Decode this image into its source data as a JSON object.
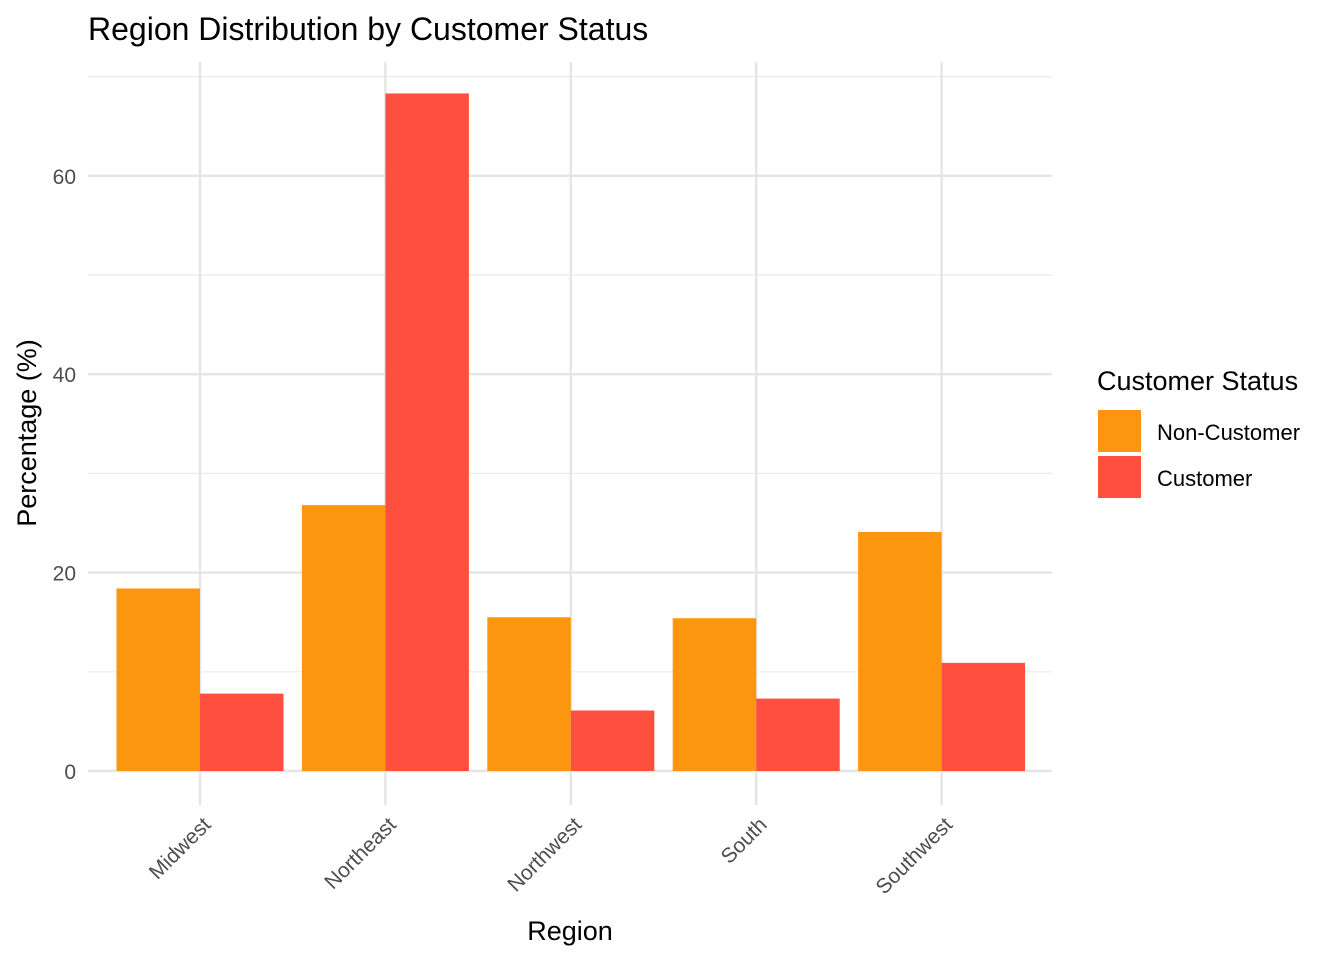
{
  "chart_data": {
    "type": "bar",
    "title": "Region Distribution by Customer Status",
    "xlabel": "Region",
    "ylabel": "Percentage (%)",
    "categories": [
      "Midwest",
      "Northeast",
      "Northwest",
      "South",
      "Southwest"
    ],
    "series": [
      {
        "name": "Non-Customer",
        "values": [
          18.4,
          26.8,
          15.5,
          15.4,
          24.1
        ],
        "color": "#FC960F"
      },
      {
        "name": "Customer",
        "values": [
          7.8,
          68.3,
          6.1,
          7.3,
          10.9
        ],
        "color": "#FF4F3E"
      }
    ],
    "ylim": [
      0,
      70
    ],
    "yticks": [
      0,
      20,
      40,
      60
    ],
    "grid": true,
    "legend": {
      "title": "Customer Status",
      "position": "right"
    }
  }
}
